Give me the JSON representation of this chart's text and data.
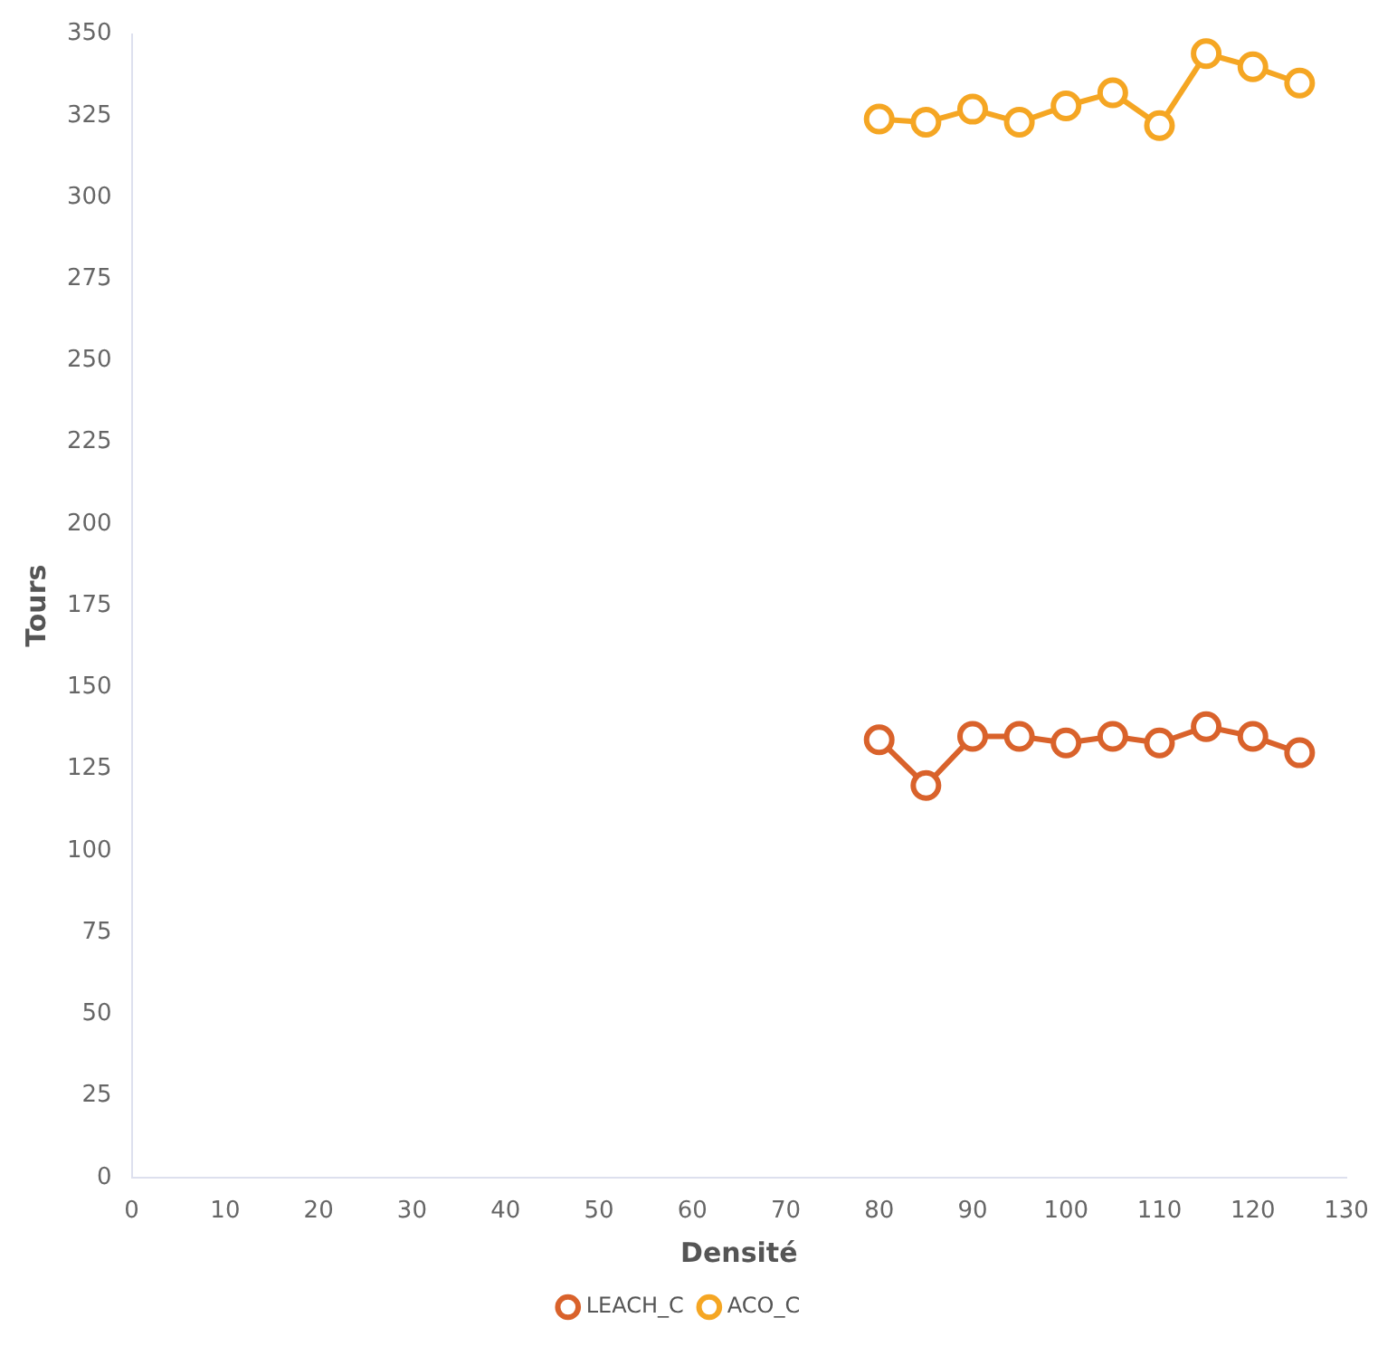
{
  "chart_data": {
    "type": "line",
    "xlabel": "Densité",
    "ylabel": "Tours",
    "x": [
      80,
      85,
      90,
      95,
      100,
      105,
      110,
      115,
      120,
      125
    ],
    "series": [
      {
        "name": "LEACH_C",
        "color": "#d9622b",
        "values": [
          134,
          120,
          135,
          135,
          133,
          135,
          133,
          138,
          135,
          130
        ]
      },
      {
        "name": "ACO_C",
        "color": "#f5a623",
        "values": [
          324,
          323,
          327,
          323,
          328,
          332,
          322,
          344,
          340,
          335
        ]
      }
    ],
    "xlim": [
      0,
      130
    ],
    "xticks": [
      0,
      10,
      20,
      30,
      40,
      50,
      60,
      70,
      80,
      90,
      100,
      110,
      120,
      130
    ],
    "ylim": [
      0,
      350
    ],
    "yticks": [
      0,
      25,
      50,
      75,
      100,
      125,
      150,
      175,
      200,
      225,
      250,
      275,
      300,
      325,
      350
    ],
    "grid": false,
    "legend": "bottom",
    "marker": "circle",
    "line_style": "solid"
  }
}
